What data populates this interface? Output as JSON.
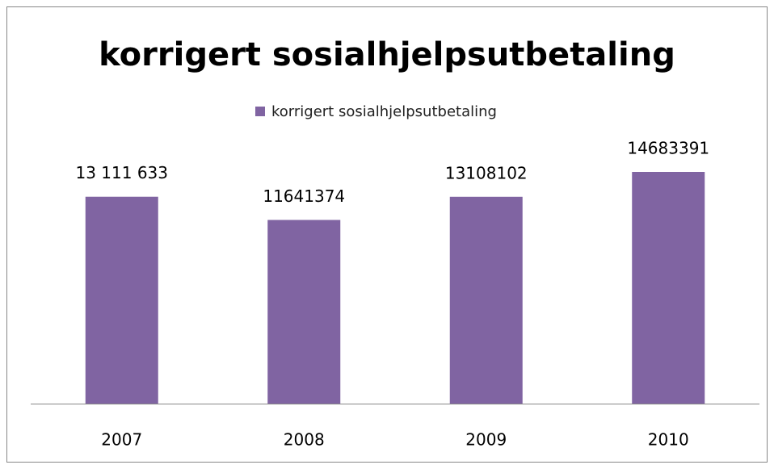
{
  "chart_data": {
    "type": "bar",
    "title": "korrigert sosialhjelpsutbetaling",
    "categories": [
      "2007",
      "2008",
      "2009",
      "2010"
    ],
    "series": [
      {
        "name": "korrigert sosialhjelpsutbetaling",
        "color": "#8064a2",
        "values": [
          13111633,
          11641374,
          13108102,
          14683391
        ],
        "value_labels": [
          "13 111 633",
          "11641374",
          "13108102",
          "14683391"
        ]
      }
    ],
    "legend": "top"
  }
}
